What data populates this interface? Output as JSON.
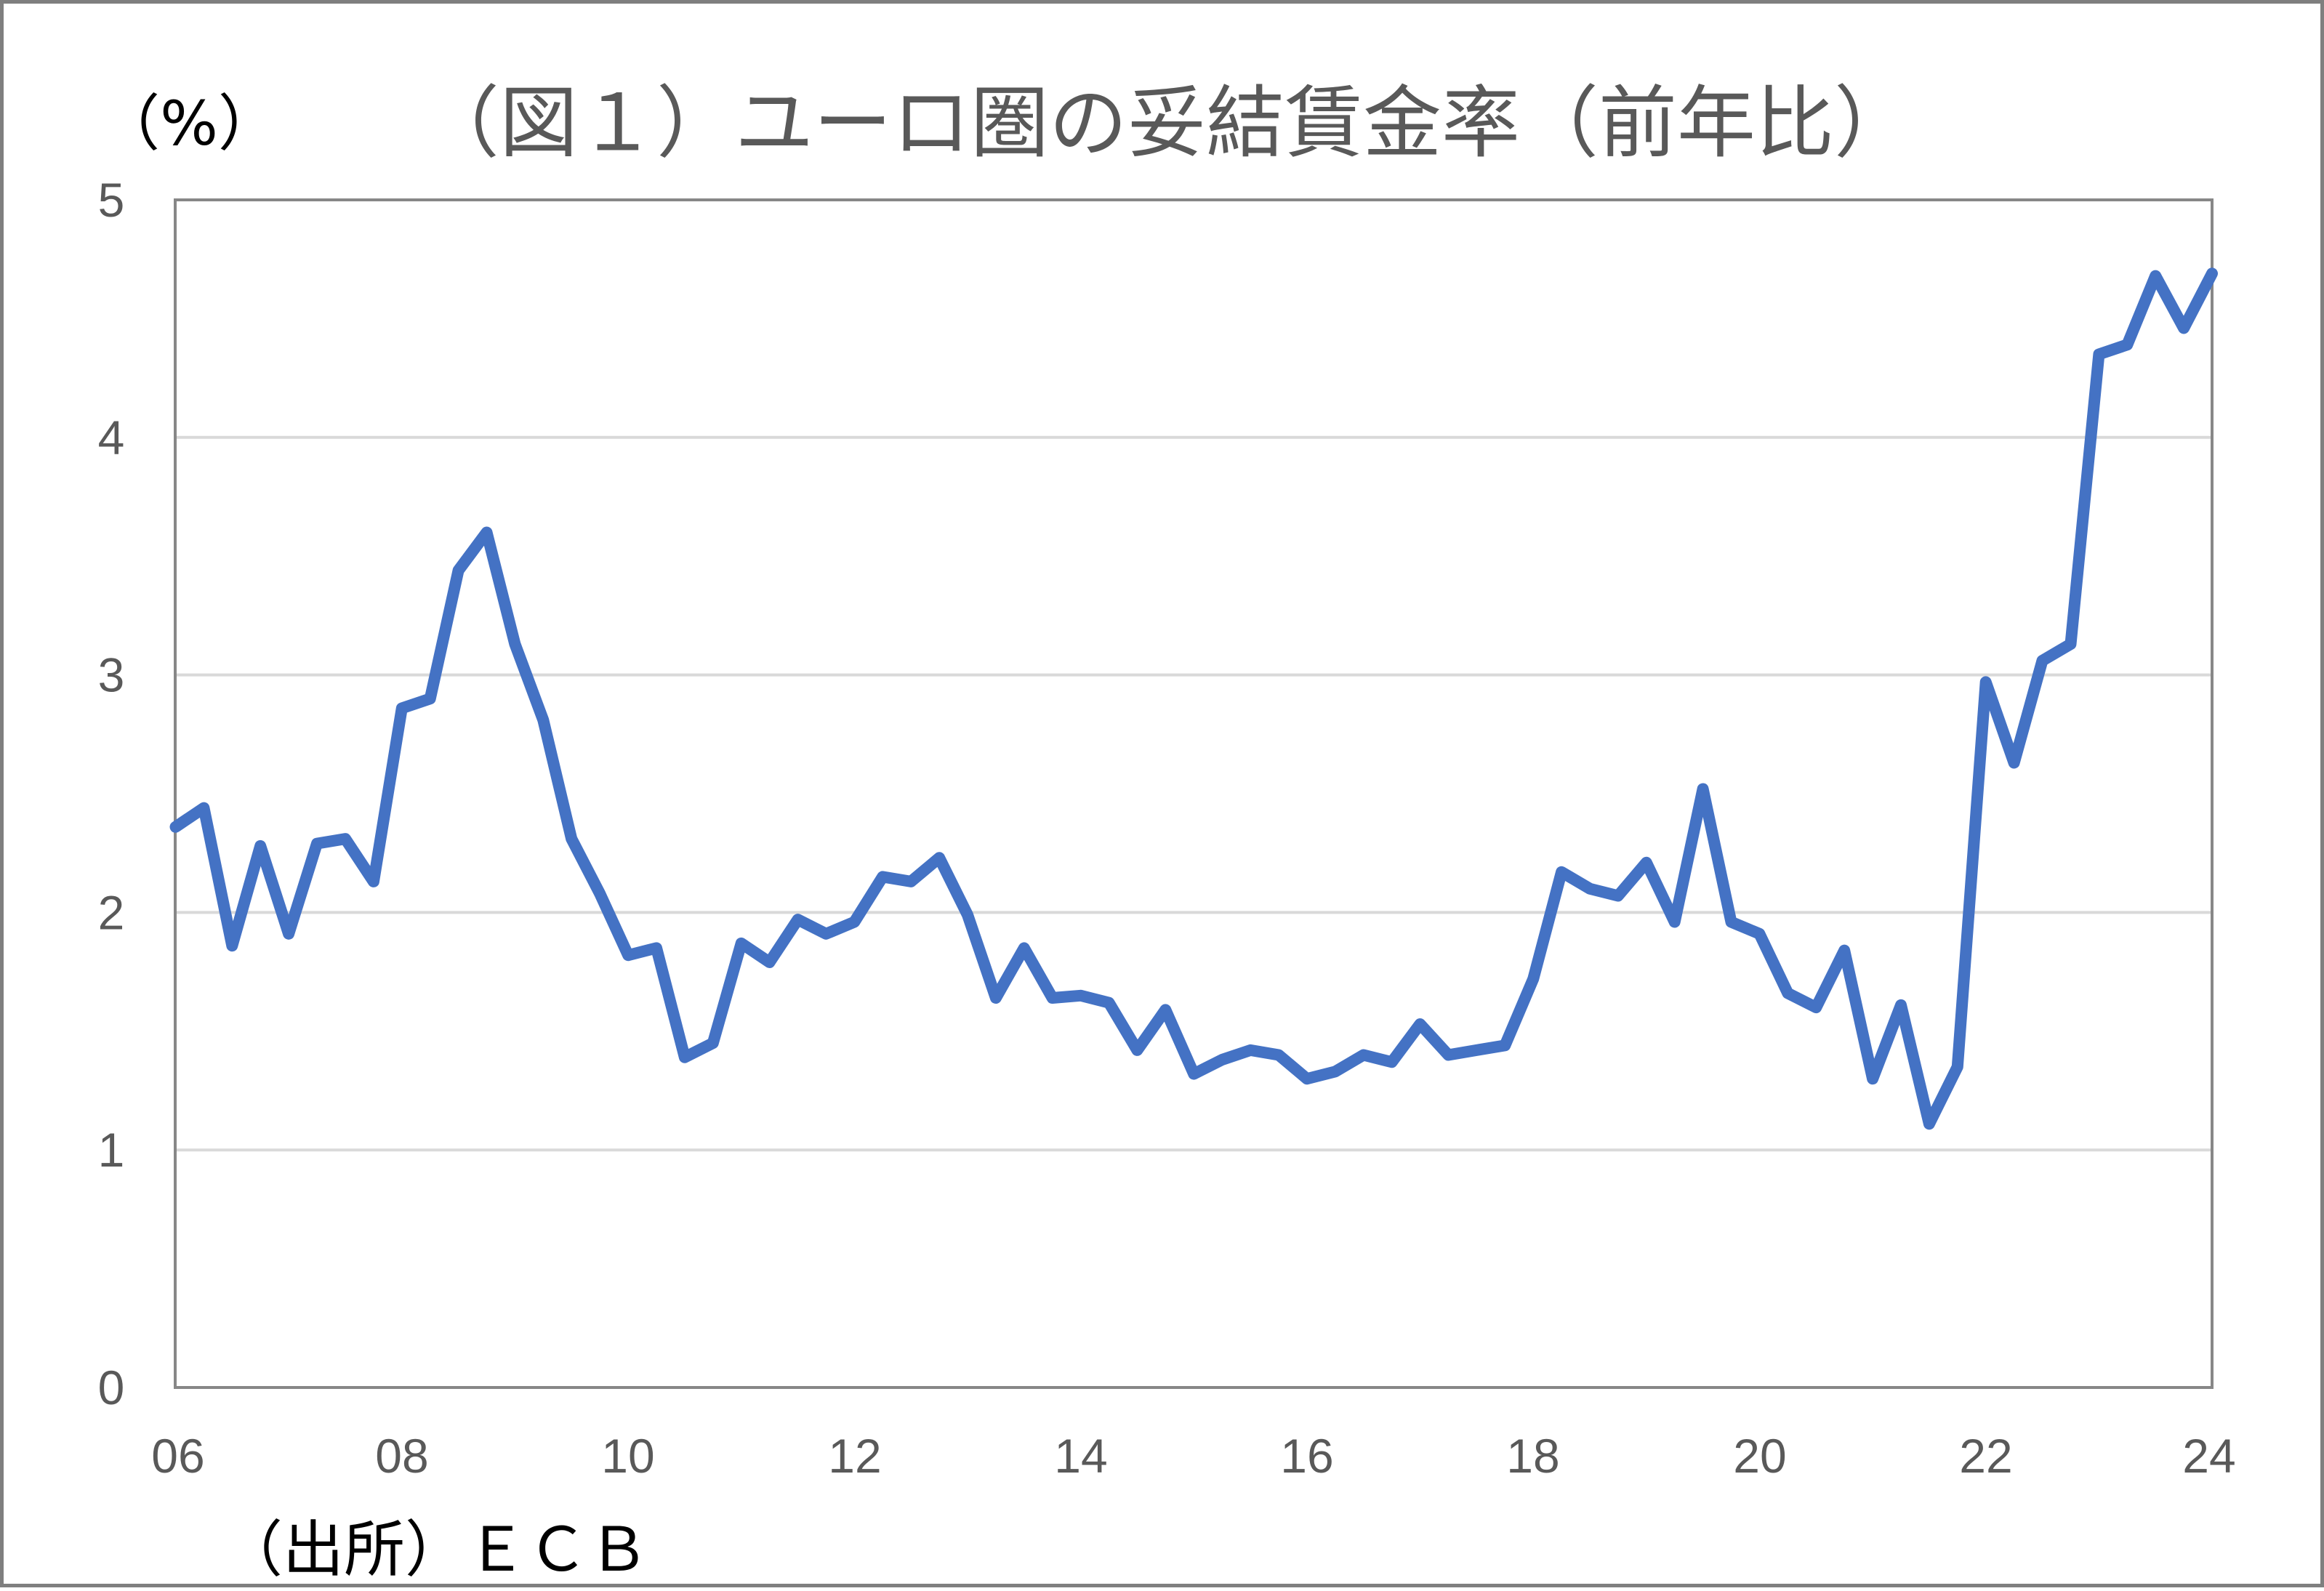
{
  "chart_data": {
    "type": "line",
    "title": "（図１）ユーロ圏の妥結賃金率（前年比）",
    "ylabel": "（%）",
    "xlabel": "",
    "source": "（出所）ＥＣＢ",
    "ylim": [
      0,
      5
    ],
    "xlim": [
      "2006Q1",
      "2024Q1"
    ],
    "y_ticks": [
      "0",
      "1",
      "2",
      "3",
      "4",
      "5"
    ],
    "x_ticks": [
      "06",
      "08",
      "10",
      "12",
      "14",
      "16",
      "18",
      "20",
      "22",
      "24"
    ],
    "grid": {
      "horizontal": true,
      "vertical": false
    },
    "legend": null,
    "x": [
      "2006Q1",
      "2006Q2",
      "2006Q3",
      "2006Q4",
      "2007Q1",
      "2007Q2",
      "2007Q3",
      "2007Q4",
      "2008Q1",
      "2008Q2",
      "2008Q3",
      "2008Q4",
      "2009Q1",
      "2009Q2",
      "2009Q3",
      "2009Q4",
      "2010Q1",
      "2010Q2",
      "2010Q3",
      "2010Q4",
      "2011Q1",
      "2011Q2",
      "2011Q3",
      "2011Q4",
      "2012Q1",
      "2012Q2",
      "2012Q3",
      "2012Q4",
      "2013Q1",
      "2013Q2",
      "2013Q3",
      "2013Q4",
      "2014Q1",
      "2014Q2",
      "2014Q3",
      "2014Q4",
      "2015Q1",
      "2015Q2",
      "2015Q3",
      "2015Q4",
      "2016Q1",
      "2016Q2",
      "2016Q3",
      "2016Q4",
      "2017Q1",
      "2017Q2",
      "2017Q3",
      "2017Q4",
      "2018Q1",
      "2018Q2",
      "2018Q3",
      "2018Q4",
      "2019Q1",
      "2019Q2",
      "2019Q3",
      "2019Q4",
      "2020Q1",
      "2020Q2",
      "2020Q3",
      "2020Q4",
      "2021Q1",
      "2021Q2",
      "2021Q3",
      "2021Q4",
      "2022Q1",
      "2022Q2",
      "2022Q3",
      "2022Q4",
      "2023Q1",
      "2023Q2",
      "2023Q3",
      "2023Q4",
      "2024Q1"
    ],
    "series": [
      {
        "color": "#4472C4",
        "values": [
          2.36,
          2.44,
          1.86,
          2.28,
          1.91,
          2.29,
          2.31,
          2.13,
          2.86,
          2.9,
          3.44,
          3.6,
          3.13,
          2.81,
          2.31,
          2.08,
          1.82,
          1.85,
          1.39,
          1.45,
          1.87,
          1.79,
          1.97,
          1.91,
          1.96,
          2.15,
          2.13,
          2.23,
          1.99,
          1.64,
          1.85,
          1.64,
          1.65,
          1.62,
          1.42,
          1.59,
          1.32,
          1.38,
          1.42,
          1.4,
          1.3,
          1.33,
          1.4,
          1.37,
          1.53,
          1.4,
          1.42,
          1.44,
          1.72,
          2.17,
          2.1,
          2.07,
          2.21,
          1.96,
          2.52,
          1.96,
          1.91,
          1.66,
          1.6,
          1.84,
          1.3,
          1.61,
          1.11,
          1.35,
          2.97,
          2.63,
          3.06,
          3.13,
          4.35,
          4.39,
          4.68,
          4.46,
          4.69
        ]
      }
    ]
  },
  "colors": {
    "line": "#4472C4",
    "gridline": "#d9d9d9",
    "plot_border": "#878787",
    "axis_text": "#595959",
    "title_text": "#595959",
    "note_text": "#000000",
    "frame_border": "#7f7f7f"
  }
}
